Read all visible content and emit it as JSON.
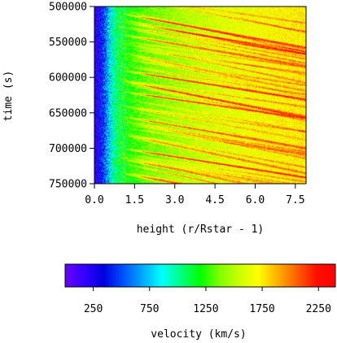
{
  "chart_data": {
    "type": "heatmap",
    "xlabel": "height (r/Rstar - 1)",
    "ylabel": "time (s)",
    "x_ticks": [
      "0.0",
      "1.5",
      "3.0",
      "4.5",
      "6.0",
      "7.5"
    ],
    "x_tick_values": [
      0.0,
      1.5,
      3.0,
      4.5,
      6.0,
      7.5
    ],
    "y_ticks": [
      "500000",
      "550000",
      "600000",
      "650000",
      "700000",
      "750000"
    ],
    "y_tick_values": [
      500000,
      550000,
      600000,
      650000,
      700000,
      750000
    ],
    "xlim": [
      0.0,
      7.9
    ],
    "ylim": [
      500000,
      750000
    ],
    "y_inverted": true,
    "colorbar": {
      "label": "velocity (km/s)",
      "ticks": [
        "250",
        "750",
        "1250",
        "1750",
        "2250"
      ],
      "tick_values": [
        250,
        750,
        1250,
        1750,
        2250
      ],
      "range": [
        0,
        2400
      ],
      "colors": [
        "#6a00ff",
        "#3300ff",
        "#0000e0",
        "#0050ff",
        "#00a8ff",
        "#00ffff",
        "#00ff80",
        "#00ff00",
        "#80ff00",
        "#c8ff00",
        "#ffff00",
        "#ffb000",
        "#ff6000",
        "#ff1000",
        "#ff0000"
      ]
    },
    "velocity_profile": {
      "heights": [
        0.0,
        0.2,
        0.4,
        0.6,
        0.8,
        1.0,
        1.5,
        2.0,
        3.0,
        4.0,
        5.0,
        6.0,
        7.0,
        7.9
      ],
      "velocity": [
        150,
        300,
        550,
        850,
        1050,
        1150,
        1250,
        1350,
        1450,
        1550,
        1620,
        1680,
        1720,
        1750
      ]
    },
    "fast_streams": [
      {
        "time": 510000,
        "slope": 7000,
        "velocity": 2250
      },
      {
        "time": 540000,
        "slope": 6500,
        "velocity": 2100
      },
      {
        "time": 565000,
        "slope": 8000,
        "velocity": 1950
      },
      {
        "time": 590000,
        "slope": 6000,
        "velocity": 2300
      },
      {
        "time": 605000,
        "slope": 7500,
        "velocity": 2200
      },
      {
        "time": 620000,
        "slope": 5500,
        "velocity": 2250
      },
      {
        "time": 640000,
        "slope": 7000,
        "velocity": 1900
      },
      {
        "time": 655000,
        "slope": 6500,
        "velocity": 2150
      },
      {
        "time": 680000,
        "slope": 8000,
        "velocity": 2050
      },
      {
        "time": 700000,
        "slope": 6000,
        "velocity": 2300
      },
      {
        "time": 715000,
        "slope": 7500,
        "velocity": 2000
      },
      {
        "time": 735000,
        "slope": 7000,
        "velocity": 2250
      }
    ]
  }
}
